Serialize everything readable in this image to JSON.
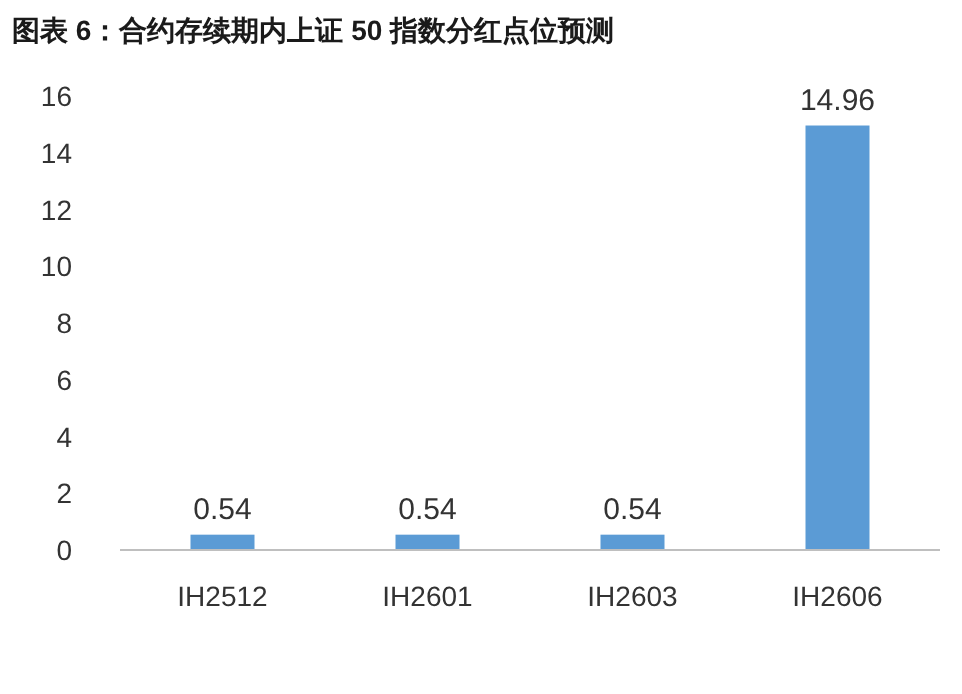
{
  "chart_data": {
    "type": "bar",
    "title": "图表 6：合约存续期内上证 50 指数分红点位预测",
    "categories": [
      "IH2512",
      "IH2601",
      "IH2603",
      "IH2606"
    ],
    "values": [
      0.54,
      0.54,
      0.54,
      14.96
    ],
    "color": "#5b9bd5",
    "ylim": [
      0,
      16
    ],
    "yticks": [
      0,
      2,
      4,
      6,
      8,
      10,
      12,
      14,
      16
    ],
    "data_labels": true,
    "grid": false
  }
}
